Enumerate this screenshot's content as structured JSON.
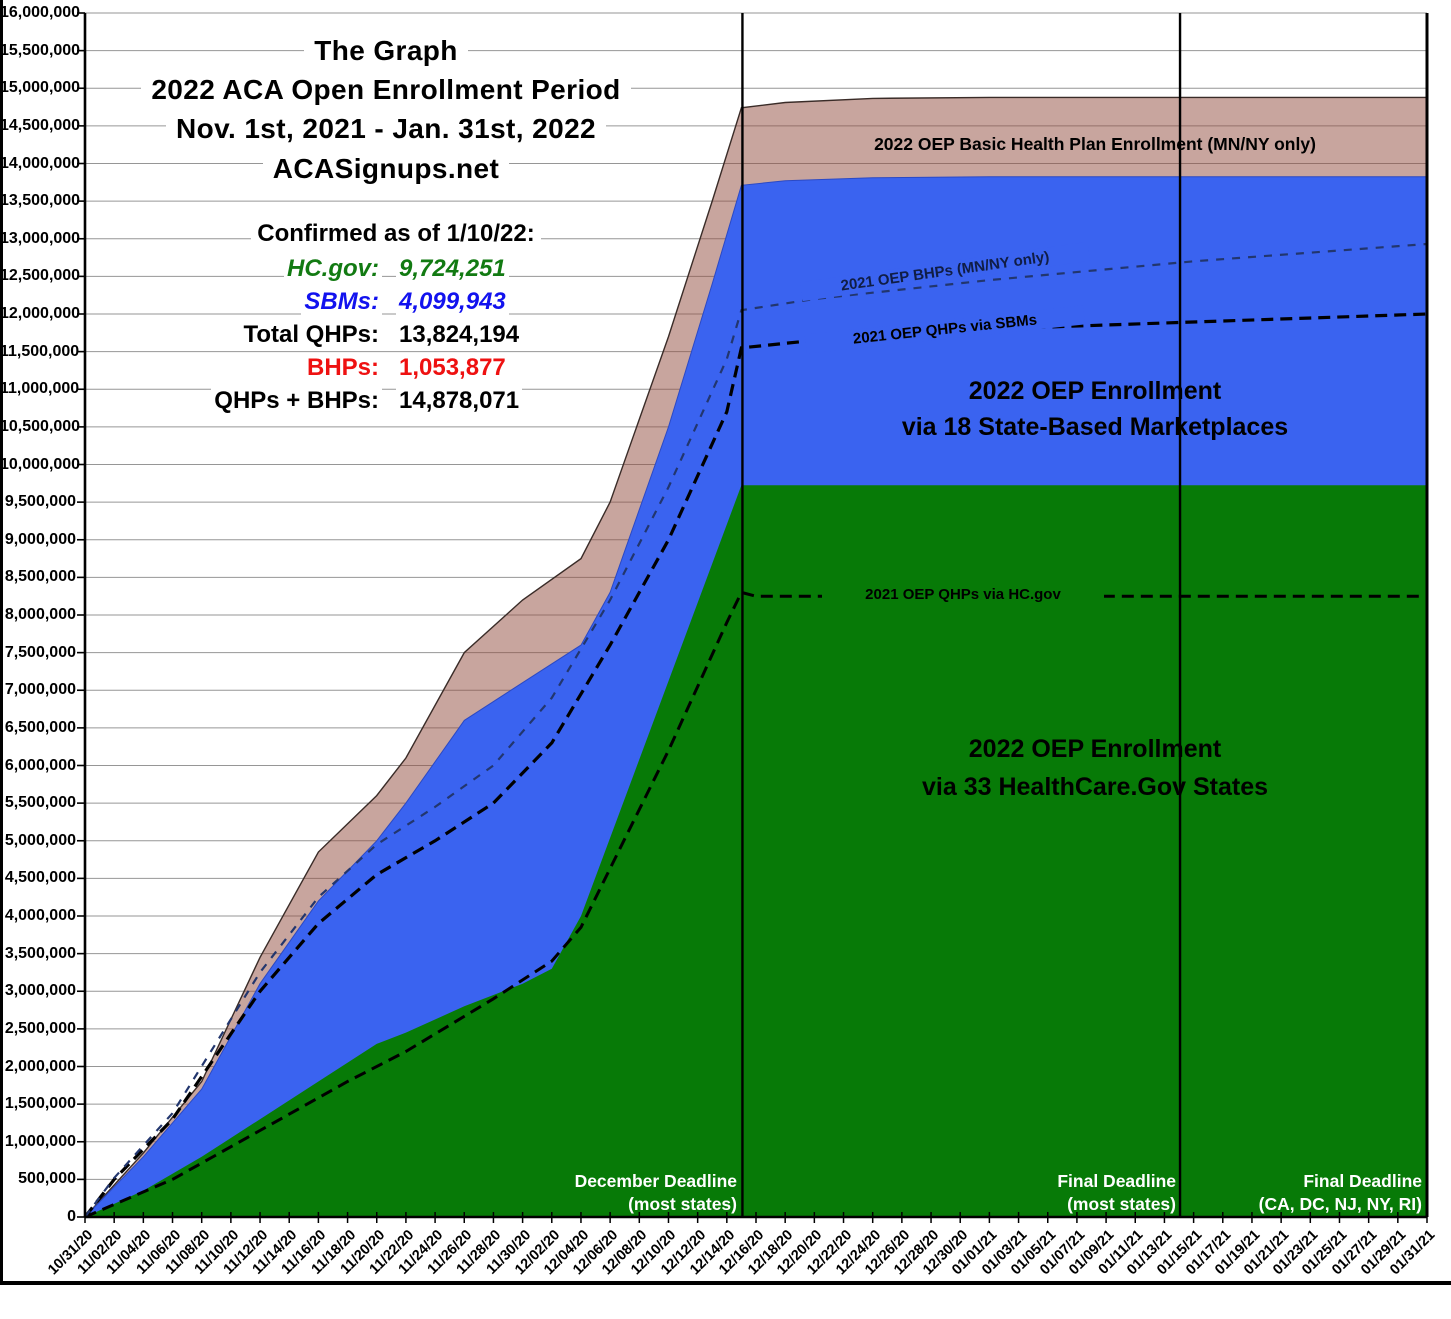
{
  "header": {
    "title_line1": "The Graph",
    "title_line2": "2022 ACA Open Enrollment Period",
    "title_line3": "Nov. 1st, 2021 - Jan. 31st, 2022",
    "title_line4": "ACASignups.net"
  },
  "stats": {
    "heading": "Confirmed as of 1/10/22:",
    "rows": [
      {
        "label": "HC.gov:",
        "value": "9,724,251",
        "color": "#127a12",
        "italic": true
      },
      {
        "label": "SBMs:",
        "value": "4,099,943",
        "color": "#1212ee",
        "italic": true
      },
      {
        "label": "Total QHPs:",
        "value": "13,824,194",
        "color": "#000000",
        "italic": false
      },
      {
        "label": "BHPs:",
        "value": "1,053,877",
        "color": "#ee1111",
        "italic": false
      },
      {
        "label": "QHPs + BHPs:",
        "value": "14,878,071",
        "color": "#000000",
        "italic": false
      }
    ]
  },
  "chart_data": {
    "type": "area",
    "stacked": true,
    "grid": true,
    "x_axis": {
      "span_days": 92,
      "tick_labels": [
        "10/31/20",
        "11/02/20",
        "11/04/20",
        "11/06/20",
        "11/08/20",
        "11/10/20",
        "11/12/20",
        "11/14/20",
        "11/16/20",
        "11/18/20",
        "11/20/20",
        "11/22/20",
        "11/24/20",
        "11/26/20",
        "11/28/20",
        "11/30/20",
        "12/02/20",
        "12/04/20",
        "12/06/20",
        "12/08/20",
        "12/10/20",
        "12/12/20",
        "12/14/20",
        "12/16/20",
        "12/18/20",
        "12/20/20",
        "12/22/20",
        "12/24/20",
        "12/26/20",
        "12/28/20",
        "12/30/20",
        "01/01/21",
        "01/03/21",
        "01/05/21",
        "01/07/21",
        "01/09/21",
        "01/11/21",
        "01/13/21",
        "01/15/21",
        "01/17/21",
        "01/19/21",
        "01/21/21",
        "01/23/21",
        "01/25/21",
        "01/27/21",
        "01/29/21",
        "01/31/21"
      ]
    },
    "y_axis": {
      "min": 0,
      "max": 16000000,
      "step": 500000,
      "tick_format": "comma"
    },
    "series": [
      {
        "id": "hcgov22",
        "name": "2022 OEP Enrollment via 33 HealthCare.Gov States",
        "label_line1": "2022 OEP Enrollment",
        "label_line2": "via 33 HealthCare.Gov States",
        "color": "#077A07",
        "opacity": 1,
        "final_value": 9724251,
        "points": [
          [
            0,
            0
          ],
          [
            4,
            350000
          ],
          [
            8,
            800000
          ],
          [
            12,
            1300000
          ],
          [
            16,
            1800000
          ],
          [
            20,
            2300000
          ],
          [
            22,
            2450000
          ],
          [
            26,
            2800000
          ],
          [
            30,
            3100000
          ],
          [
            32,
            3300000
          ],
          [
            34,
            4000000
          ],
          [
            45,
            9724251
          ],
          [
            46,
            9724251
          ],
          [
            92,
            9724251
          ]
        ]
      },
      {
        "id": "sbm22",
        "name": "2022 OEP Enrollment via 18 State-Based Marketplaces",
        "label_line1": "2022 OEP Enrollment",
        "label_line2": "via 18 State-Based Marketplaces",
        "color": "#3A63F0",
        "opacity": 1,
        "final_value": 13824194,
        "points": [
          [
            0,
            0
          ],
          [
            4,
            800000
          ],
          [
            8,
            1700000
          ],
          [
            12,
            3100000
          ],
          [
            16,
            4200000
          ],
          [
            20,
            5000000
          ],
          [
            22,
            5500000
          ],
          [
            26,
            6600000
          ],
          [
            30,
            7100000
          ],
          [
            34,
            7600000
          ],
          [
            36,
            8300000
          ],
          [
            40,
            10500000
          ],
          [
            43,
            12400000
          ],
          [
            45,
            13710000
          ],
          [
            48,
            13770000
          ],
          [
            54,
            13810000
          ],
          [
            62,
            13824194
          ],
          [
            92,
            13824194
          ]
        ]
      },
      {
        "id": "bhp22",
        "name": "2022 OEP Basic Health Plan Enrollment (MN/NY only)",
        "label": "2022 OEP Basic Health Plan Enrollment (MN/NY only)",
        "color": "#914B3D",
        "opacity": 0.5,
        "top_stroke": "#3a2c28",
        "final_value": 14878071,
        "points": [
          [
            0,
            0
          ],
          [
            4,
            850000
          ],
          [
            8,
            1800000
          ],
          [
            12,
            3450000
          ],
          [
            16,
            4850000
          ],
          [
            20,
            5600000
          ],
          [
            22,
            6100000
          ],
          [
            26,
            7500000
          ],
          [
            30,
            8200000
          ],
          [
            34,
            8750000
          ],
          [
            36,
            9500000
          ],
          [
            40,
            11700000
          ],
          [
            43,
            13500000
          ],
          [
            45,
            14740000
          ],
          [
            48,
            14810000
          ],
          [
            54,
            14865000
          ],
          [
            62,
            14878071
          ],
          [
            92,
            14878071
          ]
        ]
      }
    ],
    "reference_lines": [
      {
        "id": "hcgov21",
        "label": "2021 OEP QHPs via HC.gov",
        "color": "#000000",
        "width": 3,
        "dash": "12 7",
        "points": [
          [
            0,
            0
          ],
          [
            6,
            500000
          ],
          [
            12,
            1150000
          ],
          [
            18,
            1800000
          ],
          [
            22,
            2200000
          ],
          [
            28,
            2900000
          ],
          [
            32,
            3400000
          ],
          [
            34,
            3850000
          ],
          [
            40,
            6200000
          ],
          [
            44,
            7900000
          ],
          [
            45,
            8300000
          ],
          [
            46,
            8250000
          ],
          [
            92,
            8250000
          ]
        ]
      },
      {
        "id": "sbm21",
        "label": "2021 OEP QHPs via SBMs",
        "color": "#000000",
        "width": 3.2,
        "dash": "12 7",
        "points": [
          [
            0,
            0
          ],
          [
            2,
            500000
          ],
          [
            6,
            1300000
          ],
          [
            12,
            3000000
          ],
          [
            16,
            3900000
          ],
          [
            20,
            4550000
          ],
          [
            24,
            5000000
          ],
          [
            28,
            5500000
          ],
          [
            32,
            6300000
          ],
          [
            36,
            7600000
          ],
          [
            40,
            9000000
          ],
          [
            44,
            10700000
          ],
          [
            45,
            11550000
          ],
          [
            50,
            11650000
          ],
          [
            62,
            11800000
          ],
          [
            92,
            12000000
          ]
        ]
      },
      {
        "id": "bhp21",
        "label": "2021 OEP BHPs (MN/NY only)",
        "color": "#22366E",
        "width": 2.2,
        "dash": "8 8",
        "points": [
          [
            0,
            0
          ],
          [
            2,
            520000
          ],
          [
            6,
            1380000
          ],
          [
            12,
            3250000
          ],
          [
            16,
            4250000
          ],
          [
            20,
            4950000
          ],
          [
            24,
            5450000
          ],
          [
            28,
            6000000
          ],
          [
            32,
            6900000
          ],
          [
            36,
            8200000
          ],
          [
            40,
            9700000
          ],
          [
            44,
            11400000
          ],
          [
            45,
            12050000
          ],
          [
            50,
            12200000
          ],
          [
            62,
            12450000
          ],
          [
            76,
            12700000
          ],
          [
            92,
            12930000
          ]
        ]
      }
    ],
    "deadlines": [
      {
        "day": 45.07,
        "line1": "December Deadline",
        "line2": "(most states)"
      },
      {
        "day": 75.07,
        "line1": "Final Deadline",
        "line2": "(most states)"
      },
      {
        "day": 92,
        "line1": "Final Deadline",
        "line2": "(CA, DC, NJ, NY, RI)"
      }
    ],
    "colors": {
      "grid": "#969696",
      "axis": "#000000",
      "hcgov_area": "#077A07",
      "sbm_area": "#3A63F0",
      "bhp_band_rendered": "#C8A59E",
      "deadline_line": "#000000"
    }
  }
}
